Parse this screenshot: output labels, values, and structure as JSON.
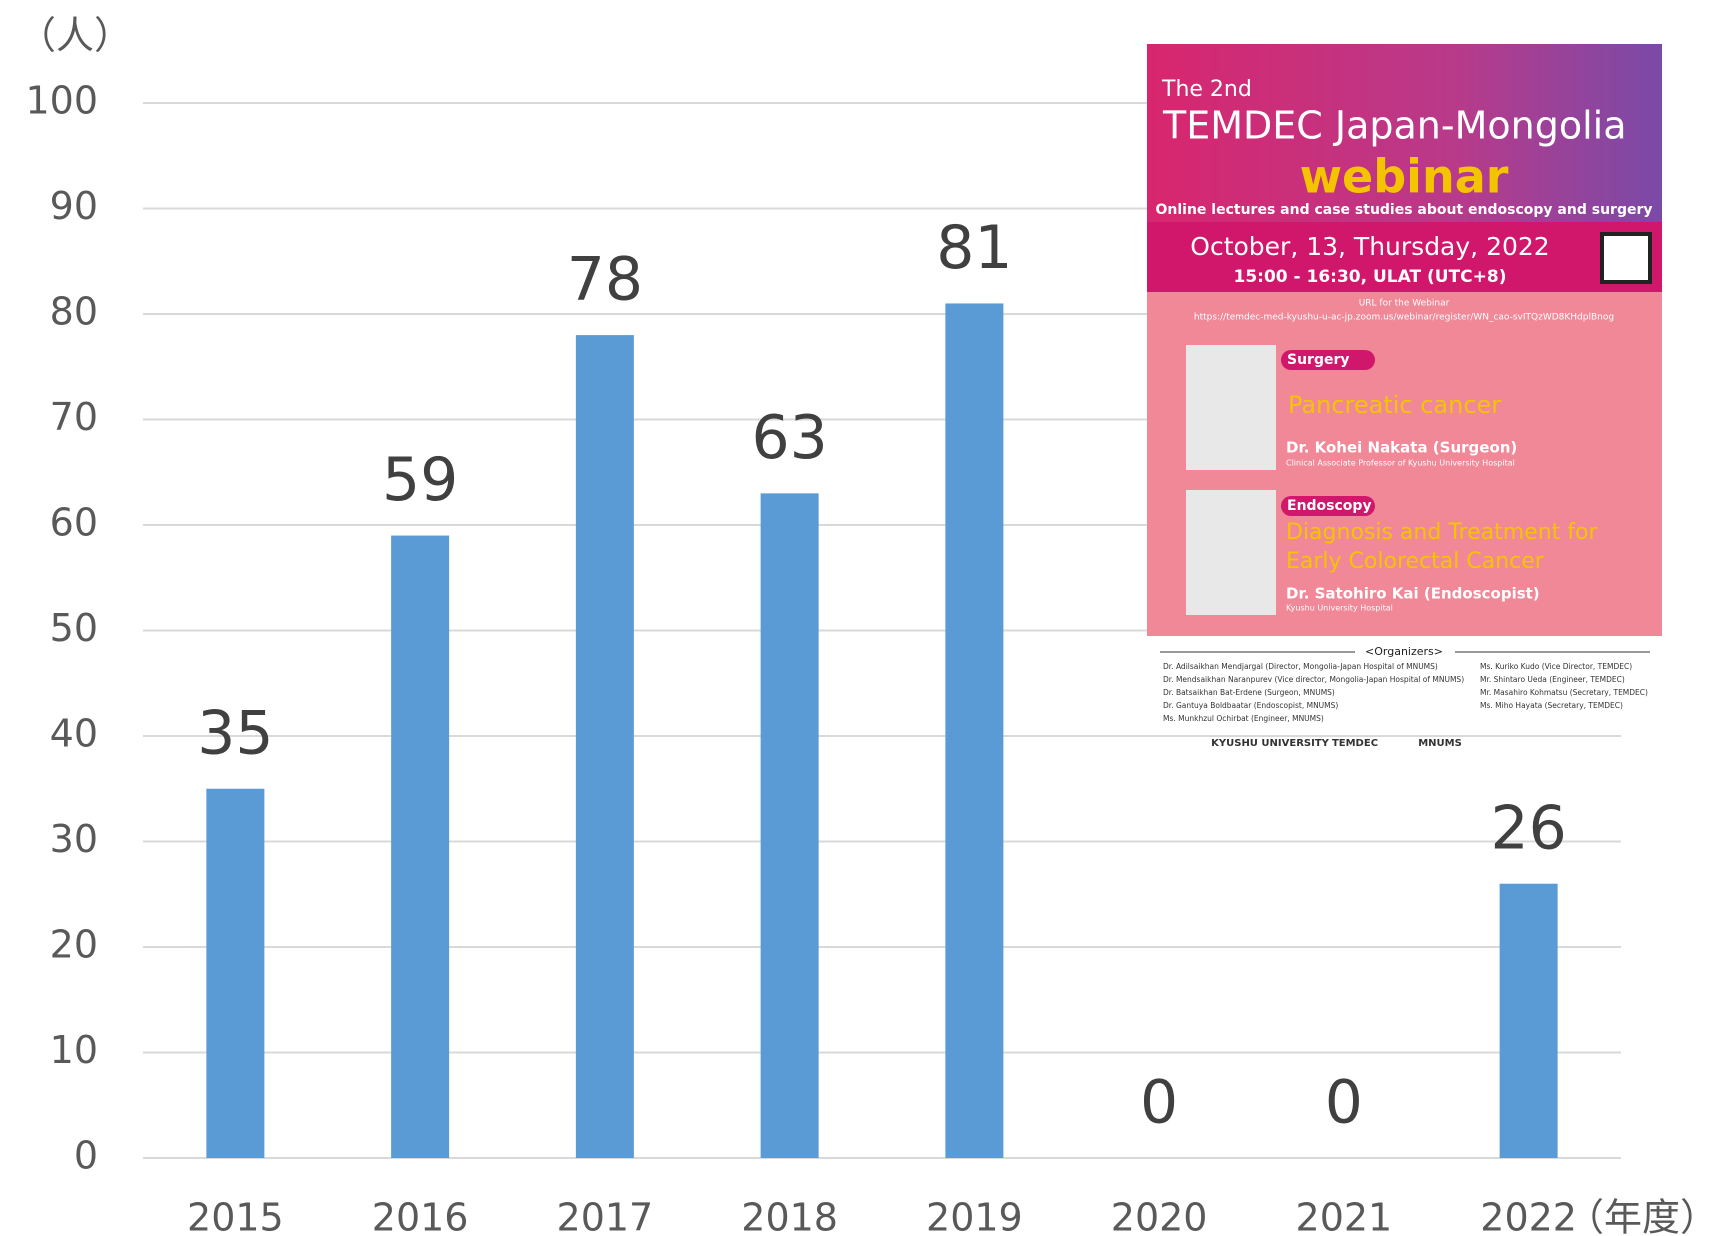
{
  "chart_data": {
    "type": "bar",
    "y_label": "（人）",
    "x_label": "（年度）",
    "categories": [
      "2015",
      "2016",
      "2017",
      "2018",
      "2019",
      "2020",
      "2021",
      "2022"
    ],
    "values": [
      35,
      59,
      78,
      63,
      81,
      0,
      0,
      26
    ],
    "color": "#5b9bd5",
    "ylim": [
      0,
      100
    ],
    "yticks": [
      0,
      10,
      20,
      30,
      40,
      50,
      60,
      70,
      80,
      90,
      100
    ],
    "grid": true
  },
  "poster": {
    "edition": "The 2nd",
    "title": "TEMDEC Japan-Mongolia",
    "event": "webinar",
    "subtitle": "Online lectures and case studies about endoscopy and surgery",
    "date": "October, 13, Thursday, 2022",
    "time": "15:00 - 16:30, ULAT (UTC+8)",
    "url_heading": "URL for the Webinar",
    "url": "https://temdec-med-kyushu-u-ac-jp.zoom.us/webinar/register/WN_cao-svITQzWD8KHdplBnog",
    "talks": [
      {
        "field": "Surgery",
        "topic": "Pancreatic cancer",
        "speaker": "Dr. Kohei Nakata (Surgeon)",
        "affiliation": "Clinical Associate Professor of Kyushu University Hospital"
      },
      {
        "field": "Endoscopy",
        "topic": "Diagnosis and Treatment for Early Colorectal Cancer",
        "speaker": "Dr. Satohiro Kai (Endoscopist)",
        "affiliation": "Kyushu University Hospital"
      }
    ],
    "organizers_heading": "<Organizers>",
    "organizers_left": [
      "Dr. Adilsaikhan Mendjargal (Director, Mongolia-Japan Hospital of MNUMS)",
      "Dr. Mendsaikhan Naranpurev (Vice director, Mongolia-Japan Hospital of MNUMS)",
      "Dr. Batsaikhan Bat-Erdene (Surgeon, MNUMS)",
      "Dr. Gantuya Boldbaatar (Endoscopist, MNUMS)",
      "Ms. Munkhzul Ochirbat (Engineer, MNUMS)"
    ],
    "organizers_right": [
      "Ms. Kuriko Kudo (Vice Director, TEMDEC)",
      "Mr. Shintaro Ueda (Engineer, TEMDEC)",
      "Mr. Masahiro Kohmatsu (Secretary, TEMDEC)",
      "Ms. Miho Hayata (Secretary, TEMDEC)"
    ],
    "logos": [
      "KYUSHU UNIVERSITY",
      "TEMDEC",
      "MNUMS"
    ]
  }
}
